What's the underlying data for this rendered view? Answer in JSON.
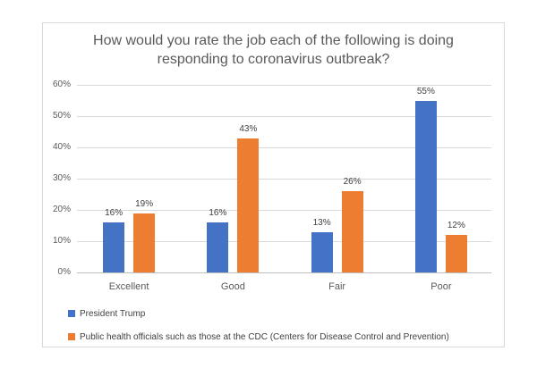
{
  "chart_data": {
    "type": "bar",
    "title": "How would you rate the job each of the following is doing responding to coronavirus outbreak?",
    "categories": [
      "Excellent",
      "Good",
      "Fair",
      "Poor"
    ],
    "series": [
      {
        "name": "President Trump",
        "color": "#4472C4",
        "values": [
          16,
          16,
          13,
          55
        ],
        "labels": [
          "16%",
          "16%",
          "13%",
          "55%"
        ]
      },
      {
        "name": "Public health officials such as those at the CDC (Centers for Disease Control and Prevention)",
        "color": "#ED7D31",
        "values": [
          19,
          43,
          26,
          12
        ],
        "labels": [
          "19%",
          "43%",
          "26%",
          "12%"
        ]
      }
    ],
    "y_axis": {
      "min": 0,
      "max": 60,
      "step": 10,
      "tick_labels": [
        "0%",
        "10%",
        "20%",
        "30%",
        "40%",
        "50%",
        "60%"
      ]
    },
    "grid": true,
    "legend_position": "bottom-left",
    "colors": {
      "gridline": "#D9D9D9",
      "axis_line": "#BFBFBF",
      "frame_border": "#D9D9D9",
      "title_text": "#595959",
      "axis_text": "#595959",
      "label_text": "#404040"
    }
  }
}
